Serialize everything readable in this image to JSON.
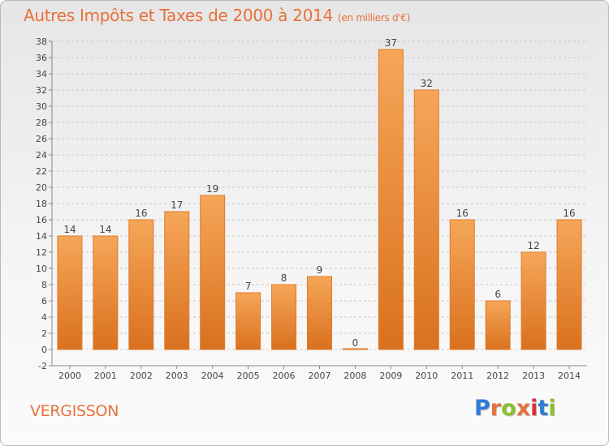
{
  "header": {
    "title": "Autres Impôts et Taxes de 2000 à 2014",
    "unit": "(en milliers d'€)"
  },
  "footer": {
    "commune": "VERGISSON",
    "logo_text": "Proxiti",
    "logo_colors": [
      "#2e7bd6",
      "#e8703a",
      "#8bbf2f",
      "#e8703a",
      "#d9323b",
      "#2e7bd6",
      "#8bbf2f"
    ]
  },
  "colors": {
    "bar_top": "#f6a658",
    "bar_bottom": "#d9711f",
    "bar_stroke": "#e07a28",
    "grid": "#c8c8c8",
    "title": "#e8703a",
    "text": "#444444"
  },
  "chart_data": {
    "type": "bar",
    "title": "Autres Impôts et Taxes de 2000 à 2014",
    "subtitle": "(en milliers d'€)",
    "xlabel": "",
    "ylabel": "",
    "categories": [
      "2000",
      "2001",
      "2002",
      "2003",
      "2004",
      "2005",
      "2006",
      "2007",
      "2008",
      "2009",
      "2010",
      "2011",
      "2012",
      "2013",
      "2014"
    ],
    "values": [
      14,
      14,
      16,
      17,
      19,
      7,
      8,
      9,
      0,
      37,
      32,
      16,
      6,
      12,
      16
    ],
    "data_labels": [
      "14",
      "14",
      "16",
      "17",
      "19",
      "7",
      "8",
      "9",
      "0",
      "37",
      "32",
      "16",
      "6",
      "12",
      "16"
    ],
    "ylim": [
      -2,
      38
    ],
    "yticks": [
      -2,
      0,
      2,
      4,
      6,
      8,
      10,
      12,
      14,
      16,
      18,
      20,
      22,
      24,
      26,
      28,
      30,
      32,
      34,
      36,
      38
    ],
    "grid": true,
    "legend": "none"
  }
}
